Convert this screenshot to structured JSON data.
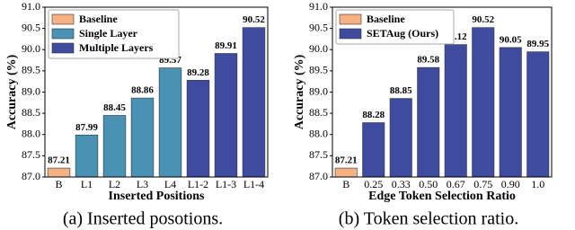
{
  "chart_data": [
    {
      "type": "bar",
      "caption": "(a) Inserted posotions.",
      "xlabel": "Inserted Positions",
      "ylabel": "Accuracy (%)",
      "categories": [
        "B",
        "L1",
        "L2",
        "L3",
        "L4",
        "L1-2",
        "L1-3",
        "L1-4"
      ],
      "series": [
        {
          "name": "Baseline",
          "color": "#f4b183",
          "values": [
            87.21,
            null,
            null,
            null,
            null,
            null,
            null,
            null
          ]
        },
        {
          "name": "Single Layer",
          "color": "#4a92b4",
          "values": [
            null,
            87.99,
            88.45,
            88.86,
            89.57,
            null,
            null,
            null
          ]
        },
        {
          "name": "Multiple Layers",
          "color": "#3f4b9e",
          "values": [
            null,
            null,
            null,
            null,
            null,
            89.28,
            89.91,
            90.52
          ]
        }
      ],
      "ylim": [
        87.0,
        91.0
      ],
      "yticks": [
        {
          "value": 87.0,
          "label": "87.0"
        },
        {
          "value": 87.5,
          "label": "87.5"
        },
        {
          "value": 88.0,
          "label": "88.0"
        },
        {
          "value": 88.5,
          "label": "88.5"
        },
        {
          "value": 89.0,
          "label": "89.0"
        },
        {
          "value": 89.5,
          "label": "89.5"
        },
        {
          "value": 90.0,
          "label": "90.0"
        },
        {
          "value": 90.5,
          "label": "90.5"
        },
        {
          "value": 91.0,
          "label": "91.0"
        }
      ],
      "legend": "upper left",
      "grid": false
    },
    {
      "type": "bar",
      "caption": "(b) Token selection ratio.",
      "xlabel": "Edge Token Selection Ratio",
      "ylabel": "Accuracy (%)",
      "categories": [
        "B",
        "0.25",
        "0.33",
        "0.50",
        "0.67",
        "0.75",
        "0.90",
        "1.0"
      ],
      "series": [
        {
          "name": "Baseline",
          "color": "#f4b183",
          "values": [
            87.21,
            null,
            null,
            null,
            null,
            null,
            null,
            null
          ]
        },
        {
          "name": "SETAug (Ours)",
          "color": "#3f4b9e",
          "values": [
            null,
            88.28,
            88.85,
            89.58,
            90.12,
            90.52,
            90.05,
            89.95
          ]
        }
      ],
      "ylim": [
        87.0,
        91.0
      ],
      "yticks": [
        {
          "value": 87.0,
          "label": "87.0"
        },
        {
          "value": 87.5,
          "label": "87.5"
        },
        {
          "value": 88.0,
          "label": "88.0"
        },
        {
          "value": 88.5,
          "label": "88.5"
        },
        {
          "value": 89.0,
          "label": "89.0"
        },
        {
          "value": 89.5,
          "label": "89.5"
        },
        {
          "value": 90.0,
          "label": "90.0"
        },
        {
          "value": 90.5,
          "label": "90.5"
        },
        {
          "value": 91.0,
          "label": "91.0"
        }
      ],
      "legend": "upper left",
      "grid": false
    }
  ]
}
